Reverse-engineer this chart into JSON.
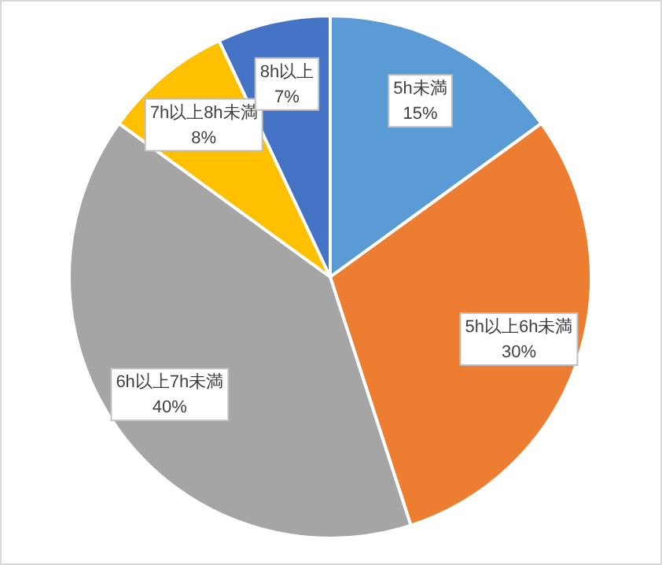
{
  "chart_data": {
    "type": "pie",
    "categories": [
      "5h未満",
      "5h以上6h未満",
      "6h以上7h未満",
      "7h以上8h未満",
      "8h以上"
    ],
    "values": [
      15,
      30,
      40,
      8,
      7
    ],
    "colors": [
      "#5b9bd5",
      "#ed7d31",
      "#a5a5a5",
      "#ffc000",
      "#4472c4"
    ],
    "value_labels": [
      "15%",
      "30%",
      "40%",
      "8%",
      "7%"
    ]
  }
}
